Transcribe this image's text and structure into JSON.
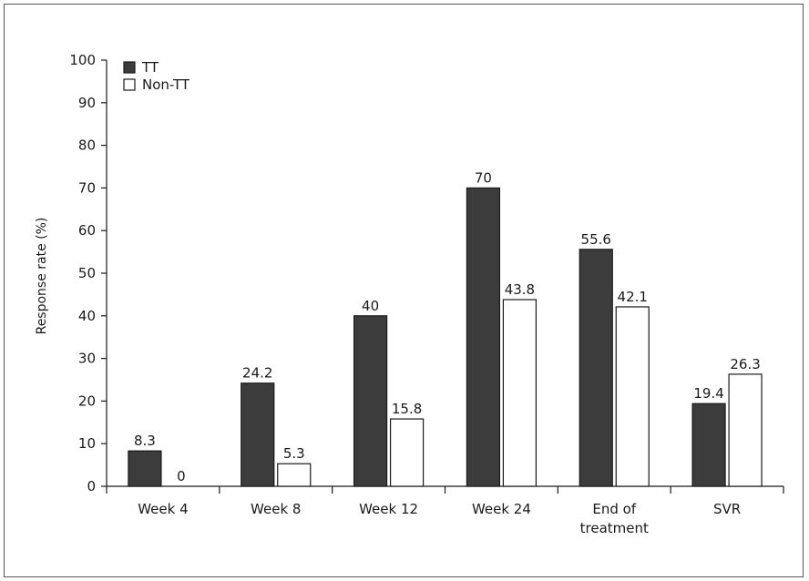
{
  "chart_data": {
    "type": "bar",
    "title": "",
    "xlabel": "",
    "ylabel": "Response rate (%)",
    "ylim": [
      0,
      100
    ],
    "yticks": [
      0,
      10,
      20,
      30,
      40,
      50,
      60,
      70,
      80,
      90,
      100
    ],
    "categories": [
      [
        "Week 4"
      ],
      [
        "Week 8"
      ],
      [
        "Week 12"
      ],
      [
        "Week 24"
      ],
      [
        "End of",
        "treatment"
      ],
      [
        "SVR"
      ]
    ],
    "series": [
      {
        "name": "TT",
        "color": "#3c3c3c",
        "values": [
          8.3,
          24.2,
          40,
          70,
          55.6,
          19.4
        ],
        "labels": [
          "8.3",
          "24.2",
          "40",
          "70",
          "55.6",
          "19.4"
        ]
      },
      {
        "name": "Non-TT",
        "color": "#ffffff",
        "values": [
          0,
          5.3,
          15.8,
          43.8,
          42.1,
          26.3
        ],
        "labels": [
          "0",
          "5.3",
          "15.8",
          "43.8",
          "42.1",
          "26.3"
        ]
      }
    ],
    "legend_position": "top-left",
    "grid": false
  }
}
